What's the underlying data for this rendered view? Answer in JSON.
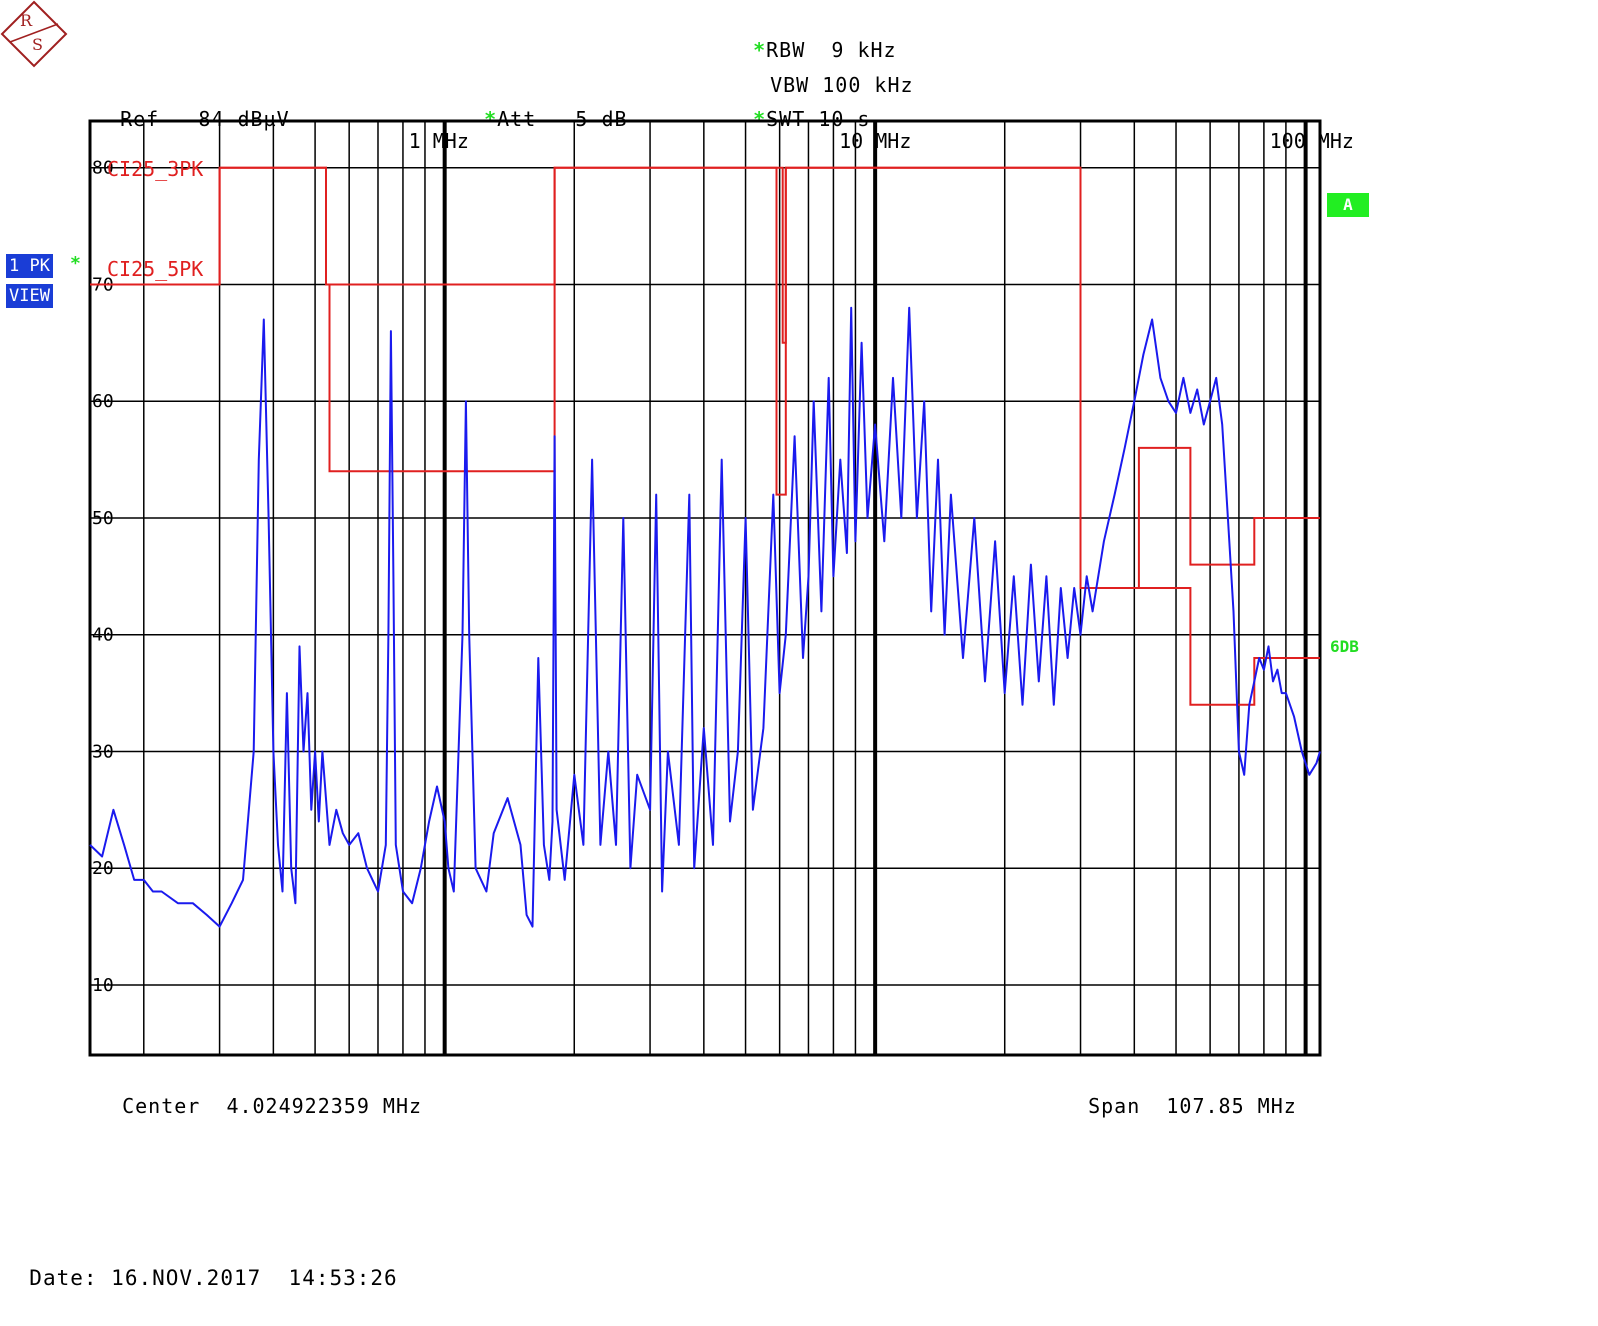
{
  "header": {
    "ref_label": "Ref",
    "ref_value": "84 dBµV",
    "att_label": "Att",
    "att_value": "5 dB",
    "rbw_label": "RBW",
    "rbw_value": "9 kHz",
    "vbw_label": "VBW",
    "vbw_value": "100 kHz",
    "swt_label": "SWT",
    "swt_value": "10 s",
    "star": "*"
  },
  "side": {
    "trace_badge": "1 PK",
    "view_badge": "VIEW",
    "screen_badge": "A",
    "margin_label": "6DB"
  },
  "footer": {
    "center_label": "Center",
    "center_value": "4.024922359 MHz",
    "span_label": "Span",
    "span_value": "107.85 MHz",
    "date_label": "Date:",
    "date_value": "16.NOV.2017",
    "time_value": "14:53:26"
  },
  "colors": {
    "trace": "#1a1aee",
    "limit": "#e02020",
    "grid": "#000000",
    "badge": "#1a3dd6",
    "status": "#22dd22"
  },
  "chart_data": {
    "type": "line",
    "x_scale": "log",
    "x_unit": "MHz",
    "xlim": [
      0.15,
      108
    ],
    "ylim": [
      4,
      84
    ],
    "y_ticks": [
      10,
      20,
      30,
      40,
      50,
      60,
      70,
      80
    ],
    "x_tick_labels": [
      {
        "x": 1,
        "label": "1 MHz"
      },
      {
        "x": 10,
        "label": "10 MHz"
      },
      {
        "x": 100,
        "label": "100 MHz"
      }
    ],
    "grid": true,
    "limit_lines": [
      {
        "name": "CI25_3PK",
        "points": [
          [
            0.15,
            70
          ],
          [
            0.3,
            70
          ],
          [
            0.3,
            80
          ],
          [
            0.53,
            80
          ],
          [
            0.53,
            70
          ],
          [
            0.54,
            70
          ],
          [
            0.54,
            54
          ],
          [
            1.8,
            54
          ],
          [
            1.8,
            80
          ],
          [
            5.9,
            80
          ],
          [
            5.9,
            52
          ],
          [
            6.2,
            52
          ],
          [
            6.2,
            80
          ],
          [
            30,
            80
          ],
          [
            30,
            44
          ],
          [
            41,
            44
          ],
          [
            41,
            56
          ],
          [
            54,
            56
          ],
          [
            54,
            46
          ],
          [
            76,
            46
          ],
          [
            76,
            50
          ],
          [
            108,
            50
          ]
        ]
      },
      {
        "name": "CI25_5PK",
        "points": [
          [
            0.15,
            70
          ],
          [
            0.3,
            70
          ],
          [
            0.3,
            80
          ],
          [
            0.53,
            80
          ],
          [
            0.53,
            70
          ],
          [
            1.8,
            70
          ],
          [
            1.8,
            80
          ],
          [
            6.1,
            80
          ],
          [
            6.1,
            65
          ],
          [
            6.2,
            65
          ],
          [
            6.2,
            80
          ],
          [
            30,
            80
          ],
          [
            30,
            44
          ],
          [
            54,
            44
          ],
          [
            54,
            34
          ],
          [
            76,
            34
          ],
          [
            76,
            38
          ],
          [
            108,
            38
          ]
        ]
      }
    ],
    "series": [
      {
        "points": [
          [
            0.15,
            22
          ],
          [
            0.16,
            21
          ],
          [
            0.17,
            25
          ],
          [
            0.18,
            22
          ],
          [
            0.19,
            19
          ],
          [
            0.2,
            19
          ],
          [
            0.21,
            18
          ],
          [
            0.22,
            18
          ],
          [
            0.24,
            17
          ],
          [
            0.26,
            17
          ],
          [
            0.28,
            16
          ],
          [
            0.3,
            15
          ],
          [
            0.32,
            17
          ],
          [
            0.34,
            19
          ],
          [
            0.36,
            30
          ],
          [
            0.37,
            55
          ],
          [
            0.38,
            67
          ],
          [
            0.39,
            50
          ],
          [
            0.4,
            30
          ],
          [
            0.41,
            22
          ],
          [
            0.42,
            18
          ],
          [
            0.43,
            35
          ],
          [
            0.44,
            20
          ],
          [
            0.45,
            17
          ],
          [
            0.46,
            39
          ],
          [
            0.47,
            30
          ],
          [
            0.48,
            35
          ],
          [
            0.49,
            25
          ],
          [
            0.5,
            30
          ],
          [
            0.51,
            24
          ],
          [
            0.52,
            30
          ],
          [
            0.54,
            22
          ],
          [
            0.56,
            25
          ],
          [
            0.58,
            23
          ],
          [
            0.6,
            22
          ],
          [
            0.63,
            23
          ],
          [
            0.66,
            20
          ],
          [
            0.7,
            18
          ],
          [
            0.73,
            22
          ],
          [
            0.74,
            40
          ],
          [
            0.75,
            66
          ],
          [
            0.76,
            45
          ],
          [
            0.77,
            22
          ],
          [
            0.8,
            18
          ],
          [
            0.84,
            17
          ],
          [
            0.88,
            20
          ],
          [
            0.92,
            24
          ],
          [
            0.96,
            27
          ],
          [
            1.0,
            24
          ],
          [
            1.02,
            20
          ],
          [
            1.05,
            18
          ],
          [
            1.1,
            40
          ],
          [
            1.12,
            60
          ],
          [
            1.14,
            40
          ],
          [
            1.18,
            20
          ],
          [
            1.25,
            18
          ],
          [
            1.3,
            23
          ],
          [
            1.4,
            26
          ],
          [
            1.5,
            22
          ],
          [
            1.55,
            16
          ],
          [
            1.6,
            15
          ],
          [
            1.65,
            38
          ],
          [
            1.7,
            22
          ],
          [
            1.75,
            19
          ],
          [
            1.78,
            24
          ],
          [
            1.8,
            57
          ],
          [
            1.82,
            25
          ],
          [
            1.9,
            19
          ],
          [
            2.0,
            28
          ],
          [
            2.1,
            22
          ],
          [
            2.2,
            55
          ],
          [
            2.3,
            22
          ],
          [
            2.4,
            30
          ],
          [
            2.5,
            22
          ],
          [
            2.6,
            50
          ],
          [
            2.7,
            20
          ],
          [
            2.8,
            28
          ],
          [
            3.0,
            25
          ],
          [
            3.1,
            52
          ],
          [
            3.2,
            18
          ],
          [
            3.3,
            30
          ],
          [
            3.5,
            22
          ],
          [
            3.7,
            52
          ],
          [
            3.8,
            20
          ],
          [
            4.0,
            32
          ],
          [
            4.2,
            22
          ],
          [
            4.4,
            55
          ],
          [
            4.6,
            24
          ],
          [
            4.8,
            30
          ],
          [
            5.0,
            50
          ],
          [
            5.2,
            25
          ],
          [
            5.5,
            32
          ],
          [
            5.8,
            52
          ],
          [
            6.0,
            35
          ],
          [
            6.2,
            40
          ],
          [
            6.5,
            57
          ],
          [
            6.8,
            38
          ],
          [
            7.0,
            45
          ],
          [
            7.2,
            60
          ],
          [
            7.5,
            42
          ],
          [
            7.8,
            62
          ],
          [
            8.0,
            45
          ],
          [
            8.3,
            55
          ],
          [
            8.6,
            47
          ],
          [
            8.8,
            68
          ],
          [
            9.0,
            48
          ],
          [
            9.3,
            65
          ],
          [
            9.6,
            50
          ],
          [
            10.0,
            58
          ],
          [
            10.5,
            48
          ],
          [
            11.0,
            62
          ],
          [
            11.5,
            50
          ],
          [
            12.0,
            68
          ],
          [
            12.5,
            50
          ],
          [
            13.0,
            60
          ],
          [
            13.5,
            42
          ],
          [
            14.0,
            55
          ],
          [
            14.5,
            40
          ],
          [
            15,
            52
          ],
          [
            16,
            38
          ],
          [
            17,
            50
          ],
          [
            18,
            36
          ],
          [
            19,
            48
          ],
          [
            20,
            35
          ],
          [
            21,
            45
          ],
          [
            22,
            34
          ],
          [
            23,
            46
          ],
          [
            24,
            36
          ],
          [
            25,
            45
          ],
          [
            26,
            34
          ],
          [
            27,
            44
          ],
          [
            28,
            38
          ],
          [
            29,
            44
          ],
          [
            30,
            40
          ],
          [
            31,
            45
          ],
          [
            32,
            42
          ],
          [
            34,
            48
          ],
          [
            36,
            52
          ],
          [
            38,
            56
          ],
          [
            40,
            60
          ],
          [
            42,
            64
          ],
          [
            44,
            67
          ],
          [
            46,
            62
          ],
          [
            48,
            60
          ],
          [
            50,
            59
          ],
          [
            52,
            62
          ],
          [
            54,
            59
          ],
          [
            56,
            61
          ],
          [
            58,
            58
          ],
          [
            60,
            60
          ],
          [
            62,
            62
          ],
          [
            64,
            58
          ],
          [
            66,
            50
          ],
          [
            68,
            42
          ],
          [
            70,
            30
          ],
          [
            72,
            28
          ],
          [
            74,
            34
          ],
          [
            76,
            36
          ],
          [
            78,
            38
          ],
          [
            80,
            37
          ],
          [
            82,
            39
          ],
          [
            84,
            36
          ],
          [
            86,
            37
          ],
          [
            88,
            35
          ],
          [
            90,
            35
          ],
          [
            94,
            33
          ],
          [
            98,
            30
          ],
          [
            102,
            28
          ],
          [
            106,
            29
          ],
          [
            108,
            30
          ]
        ]
      }
    ]
  }
}
